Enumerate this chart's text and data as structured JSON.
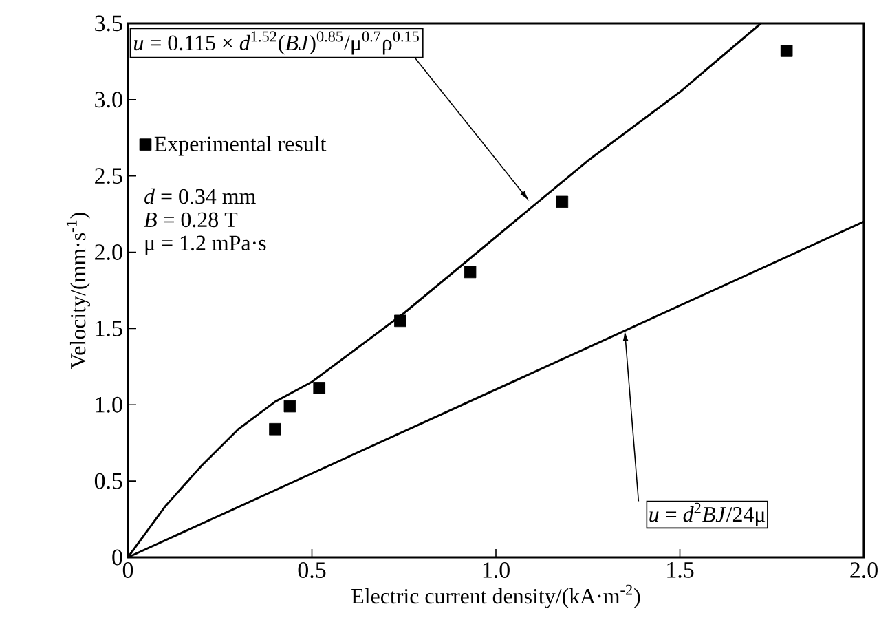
{
  "chart_data": {
    "type": "line",
    "xlabel": "Electric current density/(kA·m$^{-2}$)",
    "ylabel": "Velocity/(mm·s$^{-1}$)",
    "xlim": [
      0,
      2.0
    ],
    "ylim": [
      0,
      3.5
    ],
    "xticks": [
      0,
      0.5,
      {
        "value": 1,
        "label": "1.0"
      },
      1.5,
      {
        "value": 2,
        "label": "2.0"
      }
    ],
    "yticks": [
      0,
      0.5,
      {
        "value": 1,
        "label": "1.0"
      },
      1.5,
      {
        "value": 2,
        "label": "2.0"
      },
      2.5,
      {
        "value": 3,
        "label": "3.0"
      },
      3.5
    ],
    "legend": "top left",
    "series": [
      {
        "type": "scatter",
        "name": "Experimental result",
        "color": "#000000",
        "marker": "square",
        "x": [
          0.4,
          0.44,
          0.52,
          0.74,
          0.93,
          1.18,
          1.79
        ],
        "values": [
          0.84,
          0.99,
          1.11,
          1.55,
          1.87,
          2.33,
          3.32
        ]
      },
      {
        "color": "#000000",
        "marker": "none",
        "x": [
          0,
          0.1,
          0.2,
          0.3,
          0.4,
          0.5,
          0.75,
          1.0,
          1.25,
          1.5,
          1.72
        ],
        "values": [
          0,
          0.33,
          0.6,
          0.84,
          1.02,
          1.15,
          1.6,
          2.1,
          2.6,
          3.05,
          3.5
        ]
      },
      {
        "color": "#000000",
        "marker": "none",
        "x": [
          0,
          2.0
        ],
        "values": [
          0,
          2.2
        ]
      }
    ],
    "annotations": [
      "*u* = 0.115 × *d*$^{1.52}$(*BJ*)$^{0.85}$/μ$^{0.7}$ρ$^{0.15}$",
      {
        "text": "*u* = *d*$^{2}$*BJ*/24μ",
        "x": 1.35,
        "y": 1.49
      },
      "*d* = 0.34 mm",
      "*B* = 0.28 T",
      "μ = 1.2 mPa·s"
    ]
  }
}
